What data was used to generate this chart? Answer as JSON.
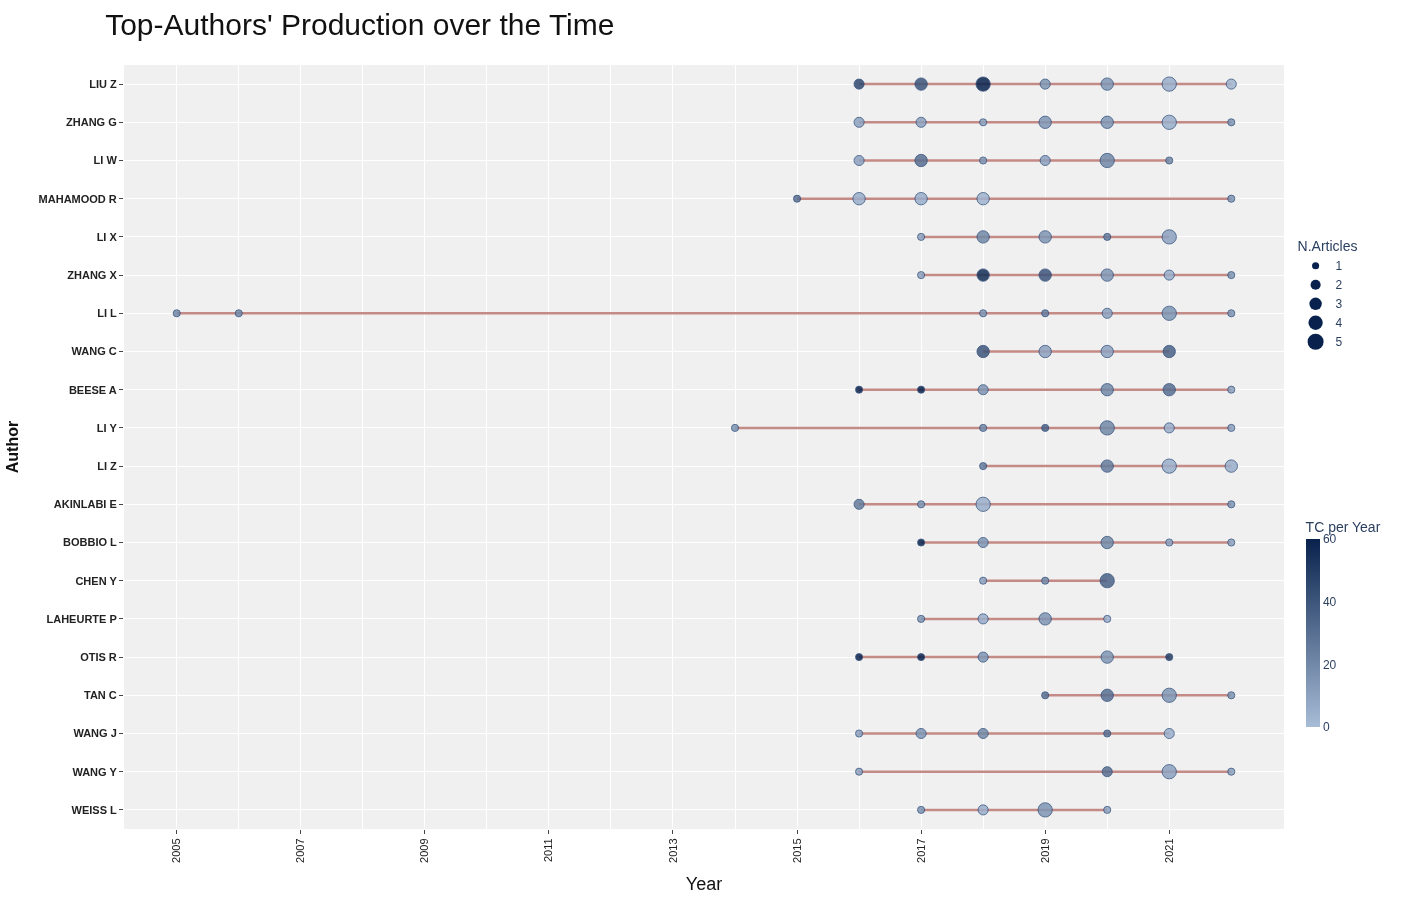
{
  "chart_data": {
    "type": "bubble",
    "orientation": "horizontal",
    "title": "Top-Authors' Production over the Time",
    "xlabel": "Year",
    "ylabel": "Author",
    "categories": [
      "LIU Z",
      "ZHANG G",
      "LI W",
      "MAHAMOOD R",
      "LI X",
      "ZHANG X",
      "LI L",
      "WANG C",
      "BEESE A",
      "LI Y",
      "LI Z",
      "AKINLABI E",
      "BOBBIO L",
      "CHEN Y",
      "LAHEURTE P",
      "OTIS R",
      "TAN C",
      "WANG J",
      "WANG Y",
      "WEISS L"
    ],
    "xlim": [
      2004.15,
      2022.85
    ],
    "xticks": [
      2005,
      2007,
      2009,
      2011,
      2013,
      2015,
      2017,
      2019,
      2021
    ],
    "grid": true,
    "legend_title": "N.Articles",
    "size_legend": [
      1,
      2,
      3,
      4,
      5
    ],
    "clabel": "TC per Year",
    "cticks": [
      0,
      20,
      40,
      60
    ],
    "clim": [
      0,
      60
    ],
    "series": [
      {
        "values": [
          null,
          null,
          null,
          null,
          null,
          null,
          2005,
          null,
          null,
          null,
          null,
          null,
          null,
          null,
          null,
          null,
          null,
          null,
          null,
          null
        ],
        "sizes": [
          null,
          null,
          null,
          null,
          null,
          null,
          1,
          null,
          null,
          null,
          null,
          null,
          null,
          null,
          null,
          null,
          null,
          null,
          null,
          null
        ],
        "colors": [
          null,
          null,
          null,
          null,
          null,
          null,
          "#7289a8",
          null,
          null,
          null,
          null,
          null,
          null,
          null,
          null,
          null,
          null,
          null,
          null,
          null
        ]
      },
      {
        "values": [
          null,
          null,
          null,
          null,
          null,
          null,
          2006,
          null,
          null,
          null,
          null,
          null,
          null,
          null,
          null,
          null,
          null,
          null,
          null,
          null
        ],
        "sizes": [
          null,
          null,
          null,
          null,
          null,
          null,
          1,
          null,
          null,
          null,
          null,
          null,
          null,
          null,
          null,
          null,
          null,
          null,
          null,
          null
        ],
        "colors": [
          null,
          null,
          null,
          null,
          null,
          null,
          "#7289a8",
          null,
          null,
          null,
          null,
          null,
          null,
          null,
          null,
          null,
          null,
          null,
          null,
          null
        ]
      },
      {
        "values": [
          null,
          null,
          null,
          null,
          null,
          null,
          null,
          null,
          null,
          2014,
          null,
          null,
          null,
          null,
          null,
          null,
          null,
          null,
          null,
          null
        ],
        "sizes": [
          null,
          null,
          null,
          null,
          null,
          null,
          null,
          null,
          null,
          1,
          null,
          null,
          null,
          null,
          null,
          null,
          null,
          null,
          null,
          null
        ],
        "colors": [
          null,
          null,
          null,
          null,
          null,
          null,
          null,
          null,
          null,
          "#7f96b4",
          null,
          null,
          null,
          null,
          null,
          null,
          null,
          null,
          null,
          null
        ]
      },
      {
        "values": [
          null,
          null,
          null,
          2015,
          null,
          null,
          null,
          null,
          null,
          null,
          null,
          null,
          null,
          null,
          null,
          null,
          null,
          null,
          null,
          null
        ],
        "sizes": [
          null,
          null,
          null,
          1,
          null,
          null,
          null,
          null,
          null,
          null,
          null,
          null,
          null,
          null,
          null,
          null,
          null,
          null,
          null,
          null
        ],
        "colors": [
          null,
          null,
          null,
          "#586f92",
          null,
          null,
          null,
          null,
          null,
          null,
          null,
          null,
          null,
          null,
          null,
          null,
          null,
          null,
          null,
          null
        ]
      },
      {
        "values": [
          2016,
          2016,
          2016,
          2016,
          null,
          null,
          null,
          null,
          2016,
          null,
          null,
          2016,
          null,
          null,
          null,
          2016,
          null,
          2016,
          2016,
          null
        ],
        "sizes": [
          2,
          2,
          2,
          3,
          null,
          null,
          null,
          null,
          1,
          null,
          null,
          2,
          null,
          null,
          null,
          1,
          null,
          1,
          1,
          null
        ],
        "colors": [
          "#30496f",
          "#8da2bf",
          "#8da2bf",
          "#9aafcb",
          null,
          null,
          null,
          null,
          "#08224d",
          null,
          null,
          "#657c9d",
          null,
          null,
          null,
          "#08224d",
          null,
          "#8da2bf",
          "#8da2bf",
          null
        ]
      },
      {
        "values": [
          2017,
          2017,
          2017,
          2017,
          2017,
          2017,
          null,
          null,
          2017,
          null,
          null,
          2017,
          2017,
          null,
          2017,
          2017,
          null,
          2017,
          null,
          2017
        ],
        "sizes": [
          3,
          2,
          3,
          3,
          1,
          1,
          null,
          null,
          1,
          null,
          null,
          1,
          1,
          null,
          1,
          1,
          null,
          2,
          null,
          1
        ],
        "colors": [
          "#3d557b",
          "#8da2bf",
          "#586f92",
          "#9aafcb",
          "#8da2bf",
          "#8da2bf",
          null,
          null,
          "#08224d",
          null,
          null,
          "#7f96b4",
          "#08224d",
          null,
          "#7f96b4",
          "#08224d",
          null,
          "#7f96b4",
          null,
          "#7f96b4"
        ]
      },
      {
        "values": [
          2018,
          2018,
          2018,
          2018,
          2018,
          2018,
          2018,
          2018,
          2018,
          2018,
          2018,
          2018,
          2018,
          2018,
          2018,
          2018,
          null,
          2018,
          null,
          2018
        ],
        "sizes": [
          4,
          1,
          1,
          3,
          3,
          3,
          1,
          3,
          2,
          1,
          1,
          4,
          2,
          1,
          2,
          2,
          null,
          2,
          null,
          2
        ],
        "colors": [
          "#08224d",
          "#8da2bf",
          "#7f96b4",
          "#9fb4cf",
          "#7289a8",
          "#152f58",
          "#7f96b4",
          "#3d557b",
          "#7f96b4",
          "#7289a8",
          "#657c9d",
          "#9aafcb",
          "#7f96b4",
          "#8da2bf",
          "#9aafcb",
          "#7f96b4",
          null,
          "#7289a8",
          null,
          "#9aafcb"
        ]
      },
      {
        "values": [
          2019,
          2019,
          2019,
          null,
          2019,
          2019,
          2019,
          2019,
          null,
          2019,
          null,
          null,
          null,
          2019,
          2019,
          null,
          2019,
          null,
          null,
          2019
        ],
        "sizes": [
          2,
          3,
          2,
          null,
          3,
          3,
          1,
          3,
          null,
          1,
          null,
          null,
          null,
          1,
          3,
          null,
          1,
          null,
          null,
          4
        ],
        "colors": [
          "#7f96b4",
          "#7f96b4",
          "#8da2bf",
          null,
          "#7f96b4",
          "#3d557b",
          "#657c9d",
          "#8da2bf",
          null,
          "#4a6286",
          null,
          null,
          null,
          "#7289a8",
          "#7f96b4",
          null,
          "#586f92",
          null,
          null,
          "#7f96b4"
        ]
      },
      {
        "values": [
          2020,
          2020,
          2020,
          null,
          2020,
          2020,
          2020,
          2020,
          2020,
          2020,
          2020,
          null,
          2020,
          2020,
          2020,
          2020,
          2020,
          2020,
          2020,
          2020
        ],
        "sizes": [
          3,
          3,
          4,
          null,
          1,
          3,
          2,
          3,
          3,
          4,
          3,
          null,
          3,
          4,
          1,
          3,
          3,
          1,
          2,
          1
        ],
        "colors": [
          "#7f96b4",
          "#7f96b4",
          "#7289a8",
          null,
          "#657c9d",
          "#7f96b4",
          "#8da2bf",
          "#8da2bf",
          "#7289a8",
          "#7289a8",
          "#657c9d",
          null,
          "#7289a8",
          "#4a6286",
          "#9aafcb",
          "#7f96b4",
          "#586f92",
          "#586f92",
          "#586f92",
          "#8da2bf"
        ]
      },
      {
        "values": [
          2021,
          2021,
          2021,
          null,
          2021,
          2021,
          2021,
          2021,
          2021,
          2021,
          2021,
          null,
          2021,
          null,
          null,
          2021,
          2021,
          2021,
          2021,
          null
        ],
        "sizes": [
          4,
          4,
          1,
          null,
          4,
          2,
          4,
          3,
          3,
          2,
          4,
          null,
          1,
          null,
          null,
          1,
          4,
          2,
          4,
          null
        ],
        "colors": [
          "#9aafcb",
          "#9aafcb",
          "#7289a8",
          null,
          "#8da2bf",
          "#9aafcb",
          "#7f96b4",
          "#4a6286",
          "#586f92",
          "#9aafcb",
          "#9aafcb",
          null,
          "#8da2bf",
          null,
          null,
          "#233c64",
          "#7f96b4",
          "#9aafcb",
          "#8da2bf",
          null
        ]
      },
      {
        "values": [
          2022,
          2022,
          null,
          2022,
          null,
          2022,
          2022,
          null,
          2022,
          2022,
          2022,
          2022,
          2022,
          null,
          null,
          null,
          2022,
          null,
          2022,
          null
        ],
        "sizes": [
          2,
          1,
          null,
          1,
          null,
          1,
          1,
          null,
          1,
          1,
          3,
          1,
          1,
          null,
          null,
          null,
          1,
          null,
          1,
          null
        ],
        "colors": [
          "#9fb4cf",
          "#7f96b4",
          null,
          "#7f96b4",
          null,
          "#7f96b4",
          "#7f96b4",
          null,
          "#8da2bf",
          "#8da2bf",
          "#9aafcb",
          "#7f96b4",
          "#8da2bf",
          null,
          null,
          null,
          "#7f96b4",
          null,
          "#8da2bf",
          null
        ]
      }
    ]
  }
}
